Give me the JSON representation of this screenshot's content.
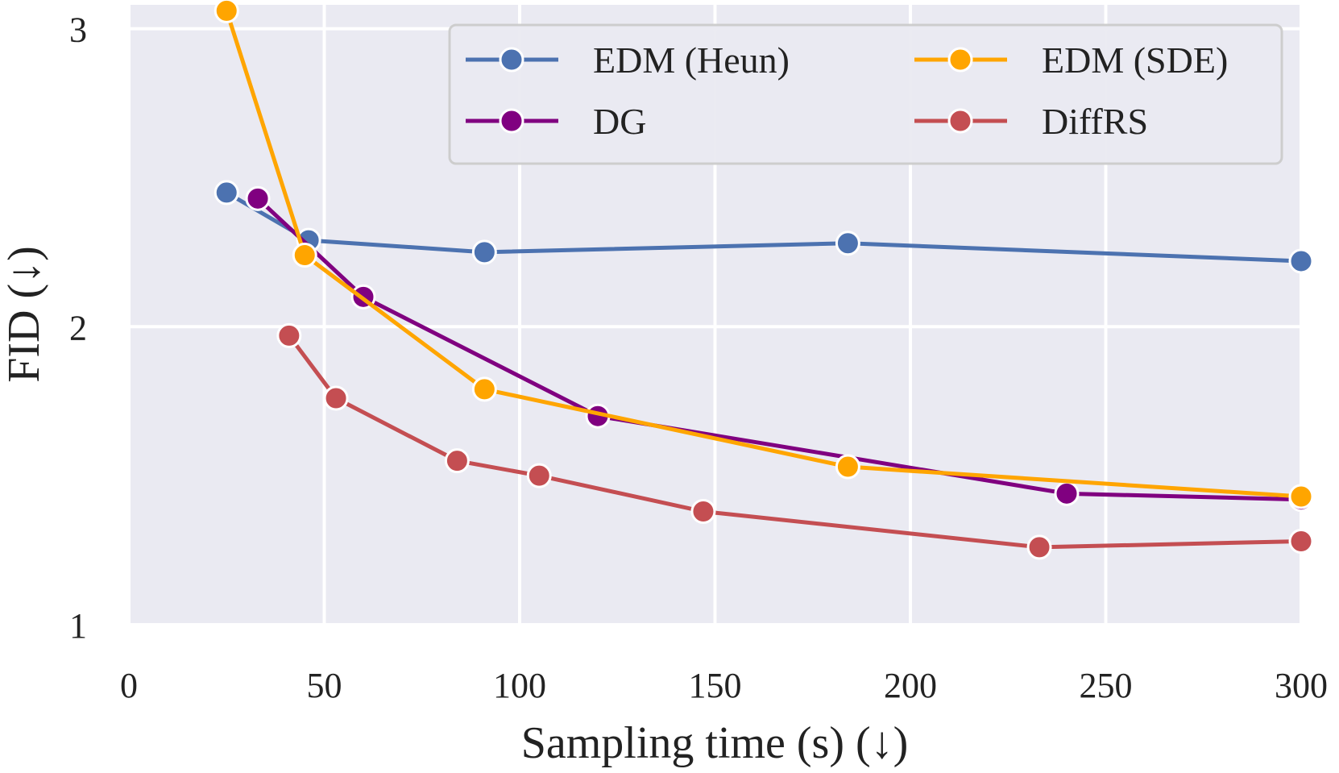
{
  "chart_data": {
    "type": "line",
    "xlabel": "Sampling time (s) (↓)",
    "ylabel": "FID (↓)",
    "xlim": [
      0,
      300
    ],
    "ylim": [
      1,
      3.08
    ],
    "x_ticks": [
      "0",
      "50",
      "100",
      "150",
      "200",
      "250",
      "300"
    ],
    "y_ticks": [
      "1",
      "2",
      "3"
    ],
    "grid": true,
    "legend_position": "top-right",
    "background": "#eaeaf2",
    "series": [
      {
        "name": "EDM (Heun)",
        "color": "#4c72b0",
        "x": [
          25,
          46,
          91,
          184,
          300
        ],
        "y": [
          2.45,
          2.29,
          2.25,
          2.28,
          2.22
        ]
      },
      {
        "name": "EDM (SDE)",
        "color": "#ffa500",
        "x": [
          25,
          45,
          91,
          184,
          300
        ],
        "y": [
          3.06,
          2.24,
          1.79,
          1.53,
          1.43
        ]
      },
      {
        "name": "DG",
        "color": "#800080",
        "x": [
          33,
          60,
          120,
          240,
          300
        ],
        "y": [
          2.43,
          2.1,
          1.7,
          1.44,
          1.42
        ]
      },
      {
        "name": "DiffRS",
        "color": "#c44e52",
        "x": [
          41,
          53,
          84,
          105,
          147,
          233,
          300
        ],
        "y": [
          1.97,
          1.76,
          1.55,
          1.5,
          1.38,
          1.26,
          1.28
        ]
      }
    ]
  }
}
